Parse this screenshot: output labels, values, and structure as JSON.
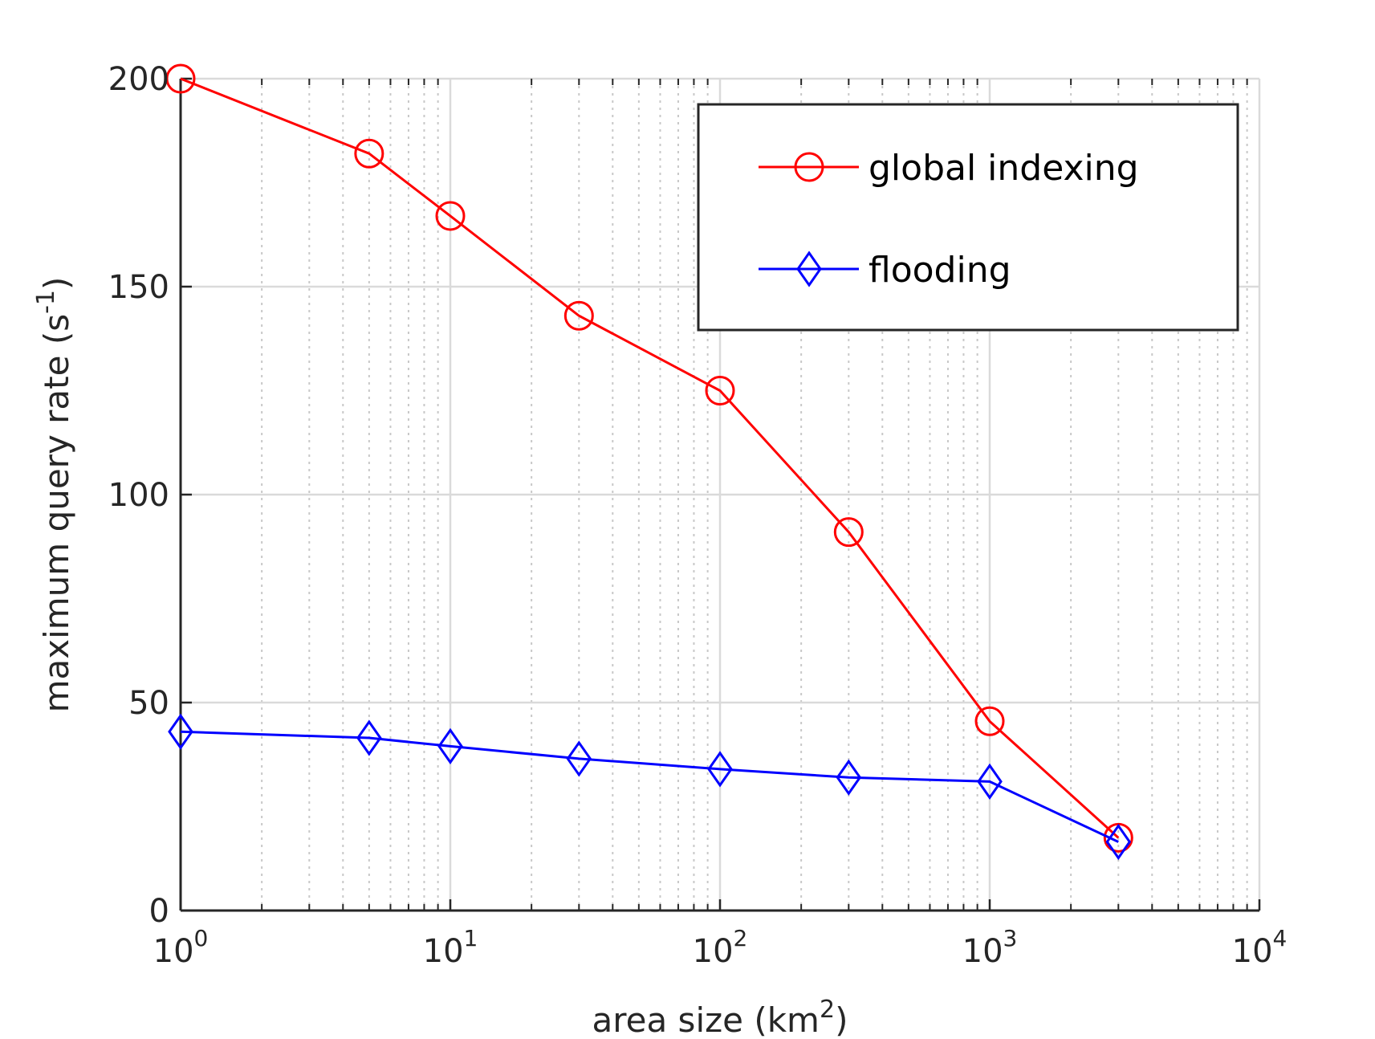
{
  "chart_data": {
    "type": "line",
    "xscale": "log",
    "xlabel": {
      "base": "area size (km",
      "sup": "2",
      "end": ")"
    },
    "ylabel": {
      "base": "maximum query rate (s",
      "sup": "-1",
      "end": ")"
    },
    "xlim": [
      1,
      10000
    ],
    "ylim": [
      0,
      200
    ],
    "xticks": [
      {
        "base": "10",
        "exp": "0",
        "value": 1
      },
      {
        "base": "10",
        "exp": "1",
        "value": 10
      },
      {
        "base": "10",
        "exp": "2",
        "value": 100
      },
      {
        "base": "10",
        "exp": "3",
        "value": 1000
      },
      {
        "base": "10",
        "exp": "4",
        "value": 10000
      }
    ],
    "yticks": [
      {
        "label": "0",
        "value": 0
      },
      {
        "label": "50",
        "value": 50
      },
      {
        "label": "100",
        "value": 100
      },
      {
        "label": "150",
        "value": 150
      },
      {
        "label": "200",
        "value": 200
      }
    ],
    "grid": true,
    "legend_position": "top-right",
    "x": [
      1,
      5,
      10,
      30,
      100,
      300,
      1000,
      3000
    ],
    "series": [
      {
        "name": "global indexing",
        "color": "#ff0000",
        "marker": "circle",
        "values": [
          200,
          182,
          167,
          143,
          125,
          91,
          45.5,
          17.5
        ]
      },
      {
        "name": "flooding",
        "color": "#0000ff",
        "marker": "diamond",
        "values": [
          43,
          41.5,
          39.5,
          36.5,
          34,
          32,
          31,
          16.5
        ]
      }
    ]
  }
}
